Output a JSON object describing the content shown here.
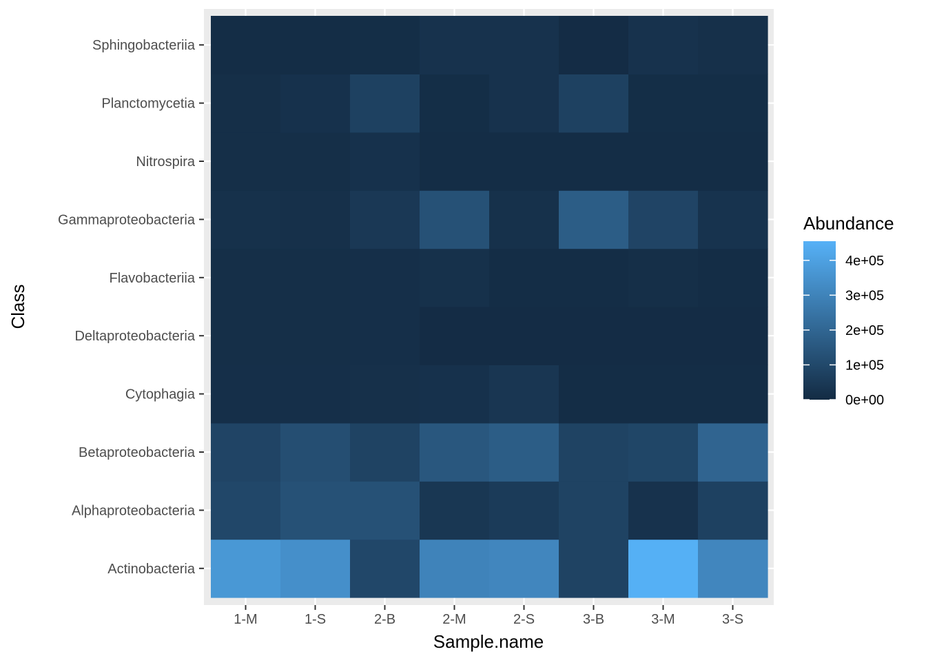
{
  "chart_data": {
    "type": "heatmap",
    "x": [
      "1-M",
      "1-S",
      "2-B",
      "2-M",
      "2-S",
      "3-B",
      "3-M",
      "3-S"
    ],
    "y": [
      "Actinobacteria",
      "Alphaproteobacteria",
      "Betaproteobacteria",
      "Cytophagia",
      "Deltaproteobacteria",
      "Flavobacteriia",
      "Gammaproteobacteria",
      "Nitrospira",
      "Planctomycetia",
      "Sphingobacteriia"
    ],
    "values": [
      [
        370000,
        340000,
        95000,
        300000,
        310000,
        80000,
        450000,
        310000
      ],
      [
        95000,
        130000,
        130000,
        40000,
        55000,
        80000,
        25000,
        75000
      ],
      [
        85000,
        120000,
        80000,
        150000,
        170000,
        80000,
        90000,
        195000
      ],
      [
        15000,
        15000,
        18000,
        22000,
        38000,
        8000,
        8000,
        8000
      ],
      [
        12000,
        12000,
        15000,
        5000,
        5000,
        5000,
        5000,
        5000
      ],
      [
        12000,
        12000,
        15000,
        20000,
        8000,
        8000,
        12000,
        8000
      ],
      [
        20000,
        18000,
        45000,
        130000,
        20000,
        170000,
        85000,
        28000
      ],
      [
        12000,
        12000,
        22000,
        8000,
        8000,
        8000,
        8000,
        8000
      ],
      [
        12000,
        22000,
        75000,
        10000,
        25000,
        75000,
        10000,
        10000
      ],
      [
        8000,
        8000,
        10000,
        25000,
        25000,
        5000,
        25000,
        18000
      ]
    ],
    "xlabel": "Sample.name",
    "ylabel": "Class",
    "legend": {
      "title": "Abundance",
      "position": "right",
      "min": 0,
      "max": 455000,
      "breaks": [
        0,
        100000,
        200000,
        300000,
        400000
      ],
      "labels": [
        "0e+00",
        "1e+05",
        "2e+05",
        "3e+05",
        "4e+05"
      ],
      "low_color": "#132B43",
      "high_color": "#56B1F7"
    },
    "panel_background": "#EBEBEB",
    "grid": true
  }
}
